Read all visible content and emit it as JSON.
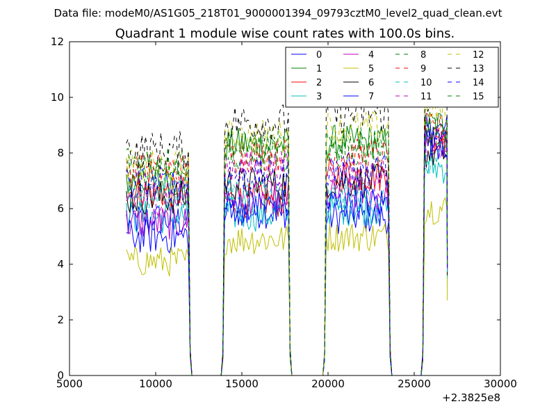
{
  "figure": {
    "suptitle": "Data file: modeM0/AS1G05_218T01_9000001394_09793cztM0_level2_quad_clean.evt"
  },
  "chart_data": {
    "type": "line",
    "title": "Quadrant 1 module wise count rates with 100.0s bins.",
    "xlabel": "",
    "ylabel": "",
    "xlim": [
      5000,
      30000
    ],
    "ylim": [
      0,
      12
    ],
    "x_offset_label": "+2.3825e8",
    "xticks": [
      5000,
      10000,
      15000,
      20000,
      25000,
      30000
    ],
    "xtick_labels": [
      "5000",
      "10000",
      "15000",
      "20000",
      "25000",
      "30000"
    ],
    "yticks": [
      0,
      2,
      4,
      6,
      8,
      10,
      12
    ],
    "ytick_labels": [
      "0",
      "2",
      "4",
      "6",
      "8",
      "10",
      "12"
    ],
    "grid": false,
    "legend": {
      "position": "top-right",
      "columns": 4
    },
    "segments": [
      {
        "start": 8300,
        "end": 11900,
        "in_step": 100
      },
      {
        "start": 14000,
        "end": 17700,
        "in_step": 100
      },
      {
        "start": 19900,
        "end": 23500,
        "in_step": 100
      },
      {
        "start": 25600,
        "end": 26900,
        "in_step": 100
      }
    ],
    "gaps": [
      {
        "from": 11900,
        "to": 14000,
        "zero_from": 12000,
        "zero_to": 13900
      },
      {
        "from": 17700,
        "to": 19900,
        "zero_from": 17800,
        "zero_to": 19800
      },
      {
        "from": 23500,
        "to": 25600,
        "zero_from": 23600,
        "zero_to": 25500
      }
    ],
    "series": [
      {
        "name": "0",
        "color": "#0000ff",
        "style": "solid",
        "levels": [
          5.6,
          5.9,
          5.7,
          8.8
        ],
        "noise": 0.45
      },
      {
        "name": "1",
        "color": "#008000",
        "style": "solid",
        "levels": [
          7.0,
          8.3,
          8.4,
          9.0
        ],
        "noise": 0.45
      },
      {
        "name": "2",
        "color": "#ff0000",
        "style": "solid",
        "levels": [
          6.6,
          6.3,
          7.2,
          8.6
        ],
        "noise": 0.45
      },
      {
        "name": "3",
        "color": "#00bfbf",
        "style": "solid",
        "levels": [
          5.7,
          5.8,
          6.0,
          7.5
        ],
        "noise": 0.45
      },
      {
        "name": "4",
        "color": "#bf00bf",
        "style": "solid",
        "levels": [
          5.5,
          6.4,
          6.5,
          8.3
        ],
        "noise": 0.45
      },
      {
        "name": "5",
        "color": "#bfbf00",
        "style": "solid",
        "levels": [
          4.1,
          4.9,
          5.0,
          6.0
        ],
        "noise": 0.4
      },
      {
        "name": "6",
        "color": "#000000",
        "style": "solid",
        "levels": [
          6.4,
          6.9,
          7.0,
          8.0
        ],
        "noise": 0.45
      },
      {
        "name": "7",
        "color": "#0000ff",
        "style": "solid",
        "levels": [
          5.0,
          6.1,
          6.2,
          8.4
        ],
        "noise": 0.45
      },
      {
        "name": "8",
        "color": "#008000",
        "style": "dashed",
        "levels": [
          7.2,
          7.8,
          8.1,
          8.7
        ],
        "noise": 0.45
      },
      {
        "name": "9",
        "color": "#ff0000",
        "style": "dashed",
        "levels": [
          7.4,
          7.9,
          7.9,
          8.8
        ],
        "noise": 0.45
      },
      {
        "name": "10",
        "color": "#00bfbf",
        "style": "dashed",
        "levels": [
          6.5,
          6.5,
          6.4,
          7.8
        ],
        "noise": 0.45
      },
      {
        "name": "11",
        "color": "#bf00bf",
        "style": "dashed",
        "levels": [
          6.4,
          7.5,
          7.2,
          8.4
        ],
        "noise": 0.45
      },
      {
        "name": "12",
        "color": "#bfbf00",
        "style": "dashed",
        "levels": [
          7.5,
          8.6,
          8.9,
          9.5
        ],
        "noise": 0.45
      },
      {
        "name": "13",
        "color": "#000000",
        "style": "dashed",
        "levels": [
          8.1,
          9.1,
          9.4,
          10.0
        ],
        "noise": 0.5
      },
      {
        "name": "14",
        "color": "#0000ff",
        "style": "dashed",
        "levels": [
          6.9,
          7.2,
          7.4,
          8.5
        ],
        "noise": 0.45
      },
      {
        "name": "15",
        "color": "#008000",
        "style": "dashed",
        "levels": [
          7.7,
          8.2,
          8.3,
          8.7
        ],
        "noise": 0.45
      }
    ]
  }
}
